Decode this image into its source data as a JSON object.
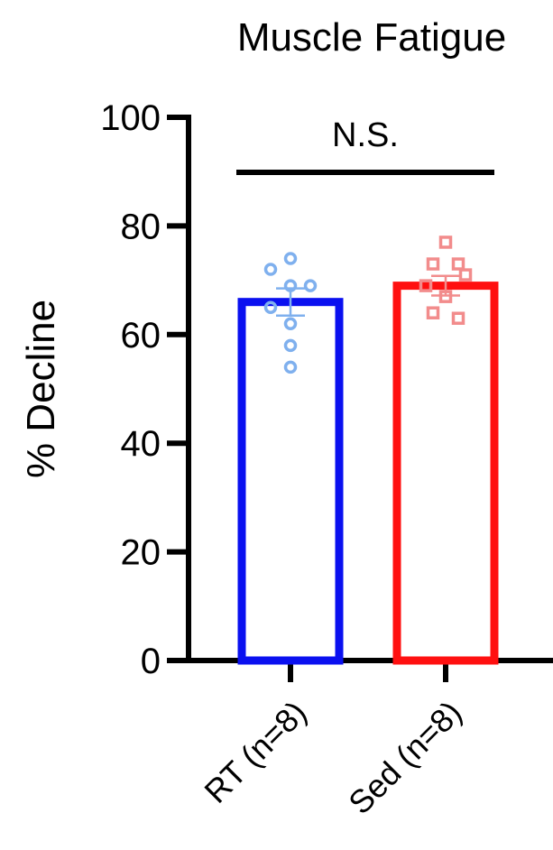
{
  "chart_data": {
    "type": "bar",
    "title": "Muscle Fatigue",
    "ylabel": "% Decline",
    "xlabel": "",
    "ylim": [
      0,
      100
    ],
    "yticks": [
      0,
      20,
      40,
      60,
      80,
      100
    ],
    "categories": [
      "RT (n=8)",
      "Sed (n=8)"
    ],
    "values": [
      66,
      69
    ],
    "sem": [
      2.5,
      1.8
    ],
    "colors": [
      "#0a10f0",
      "#ff1010"
    ],
    "point_colors": [
      "#7fb0ee",
      "#f28c8c"
    ],
    "markers": [
      "circle",
      "square"
    ],
    "points": [
      [
        74,
        72,
        69,
        69,
        65,
        62,
        58,
        54
      ],
      [
        77,
        73,
        73,
        71,
        69,
        67,
        64,
        63
      ]
    ],
    "significance": {
      "label": "N.S.",
      "between": [
        0,
        1
      ]
    },
    "grid": false,
    "legend": "none"
  }
}
